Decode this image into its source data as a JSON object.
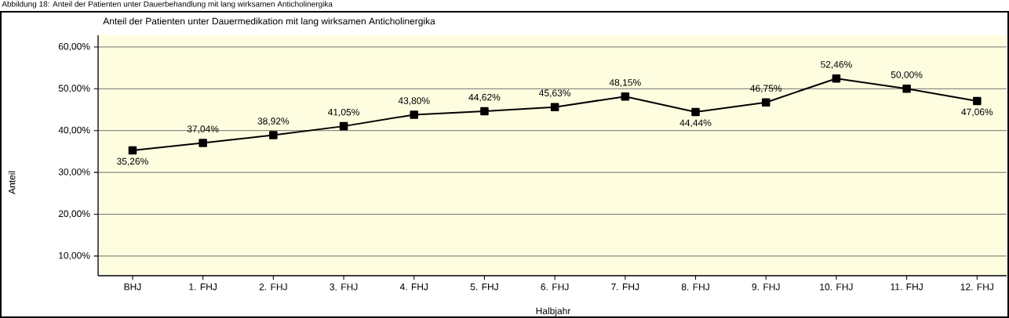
{
  "chart_data": {
    "type": "line",
    "title": "Abbildung 18: Anteil der Patienten unter Dauerbehandlung mit lang wirksamen Anticholinergika",
    "subtitle": "Anteil der Patienten unter Dauermedikation mit lang wirksamen Anticholinergika",
    "xlabel": "Halbjahr",
    "ylabel": "Anteil",
    "categories": [
      "BHJ",
      "1. FHJ",
      "2. FHJ",
      "3. FHJ",
      "4. FHJ",
      "5. FHJ",
      "6. FHJ",
      "7. FHJ",
      "8. FHJ",
      "9. FHJ",
      "10. FHJ",
      "11. FHJ",
      "12. FHJ"
    ],
    "series": [
      {
        "color": "#000000",
        "values": [
          35.26,
          37.04,
          38.92,
          41.05,
          43.8,
          44.62,
          45.63,
          48.15,
          44.44,
          46.75,
          52.46,
          50.0,
          47.06
        ],
        "value_labels": [
          "35,26%",
          "37,04%",
          "38,92%",
          "41,05%",
          "43,80%",
          "44,62%",
          "45,63%",
          "48,15%",
          "44,44%",
          "46,75%",
          "52,46%",
          "50,00%",
          "47,06%"
        ]
      }
    ],
    "ylim": [
      5.3,
      62.8
    ],
    "yticks": [
      {
        "value": 10,
        "label": "10,00%"
      },
      {
        "value": 20,
        "label": "20,00%"
      },
      {
        "value": 30,
        "label": "30,00%"
      },
      {
        "value": 40,
        "label": "40,00%"
      },
      {
        "value": 50,
        "label": "50,00%"
      },
      {
        "value": 60,
        "label": "60,00%"
      }
    ],
    "grid": "y",
    "marker": "square",
    "line_style": "solid"
  }
}
